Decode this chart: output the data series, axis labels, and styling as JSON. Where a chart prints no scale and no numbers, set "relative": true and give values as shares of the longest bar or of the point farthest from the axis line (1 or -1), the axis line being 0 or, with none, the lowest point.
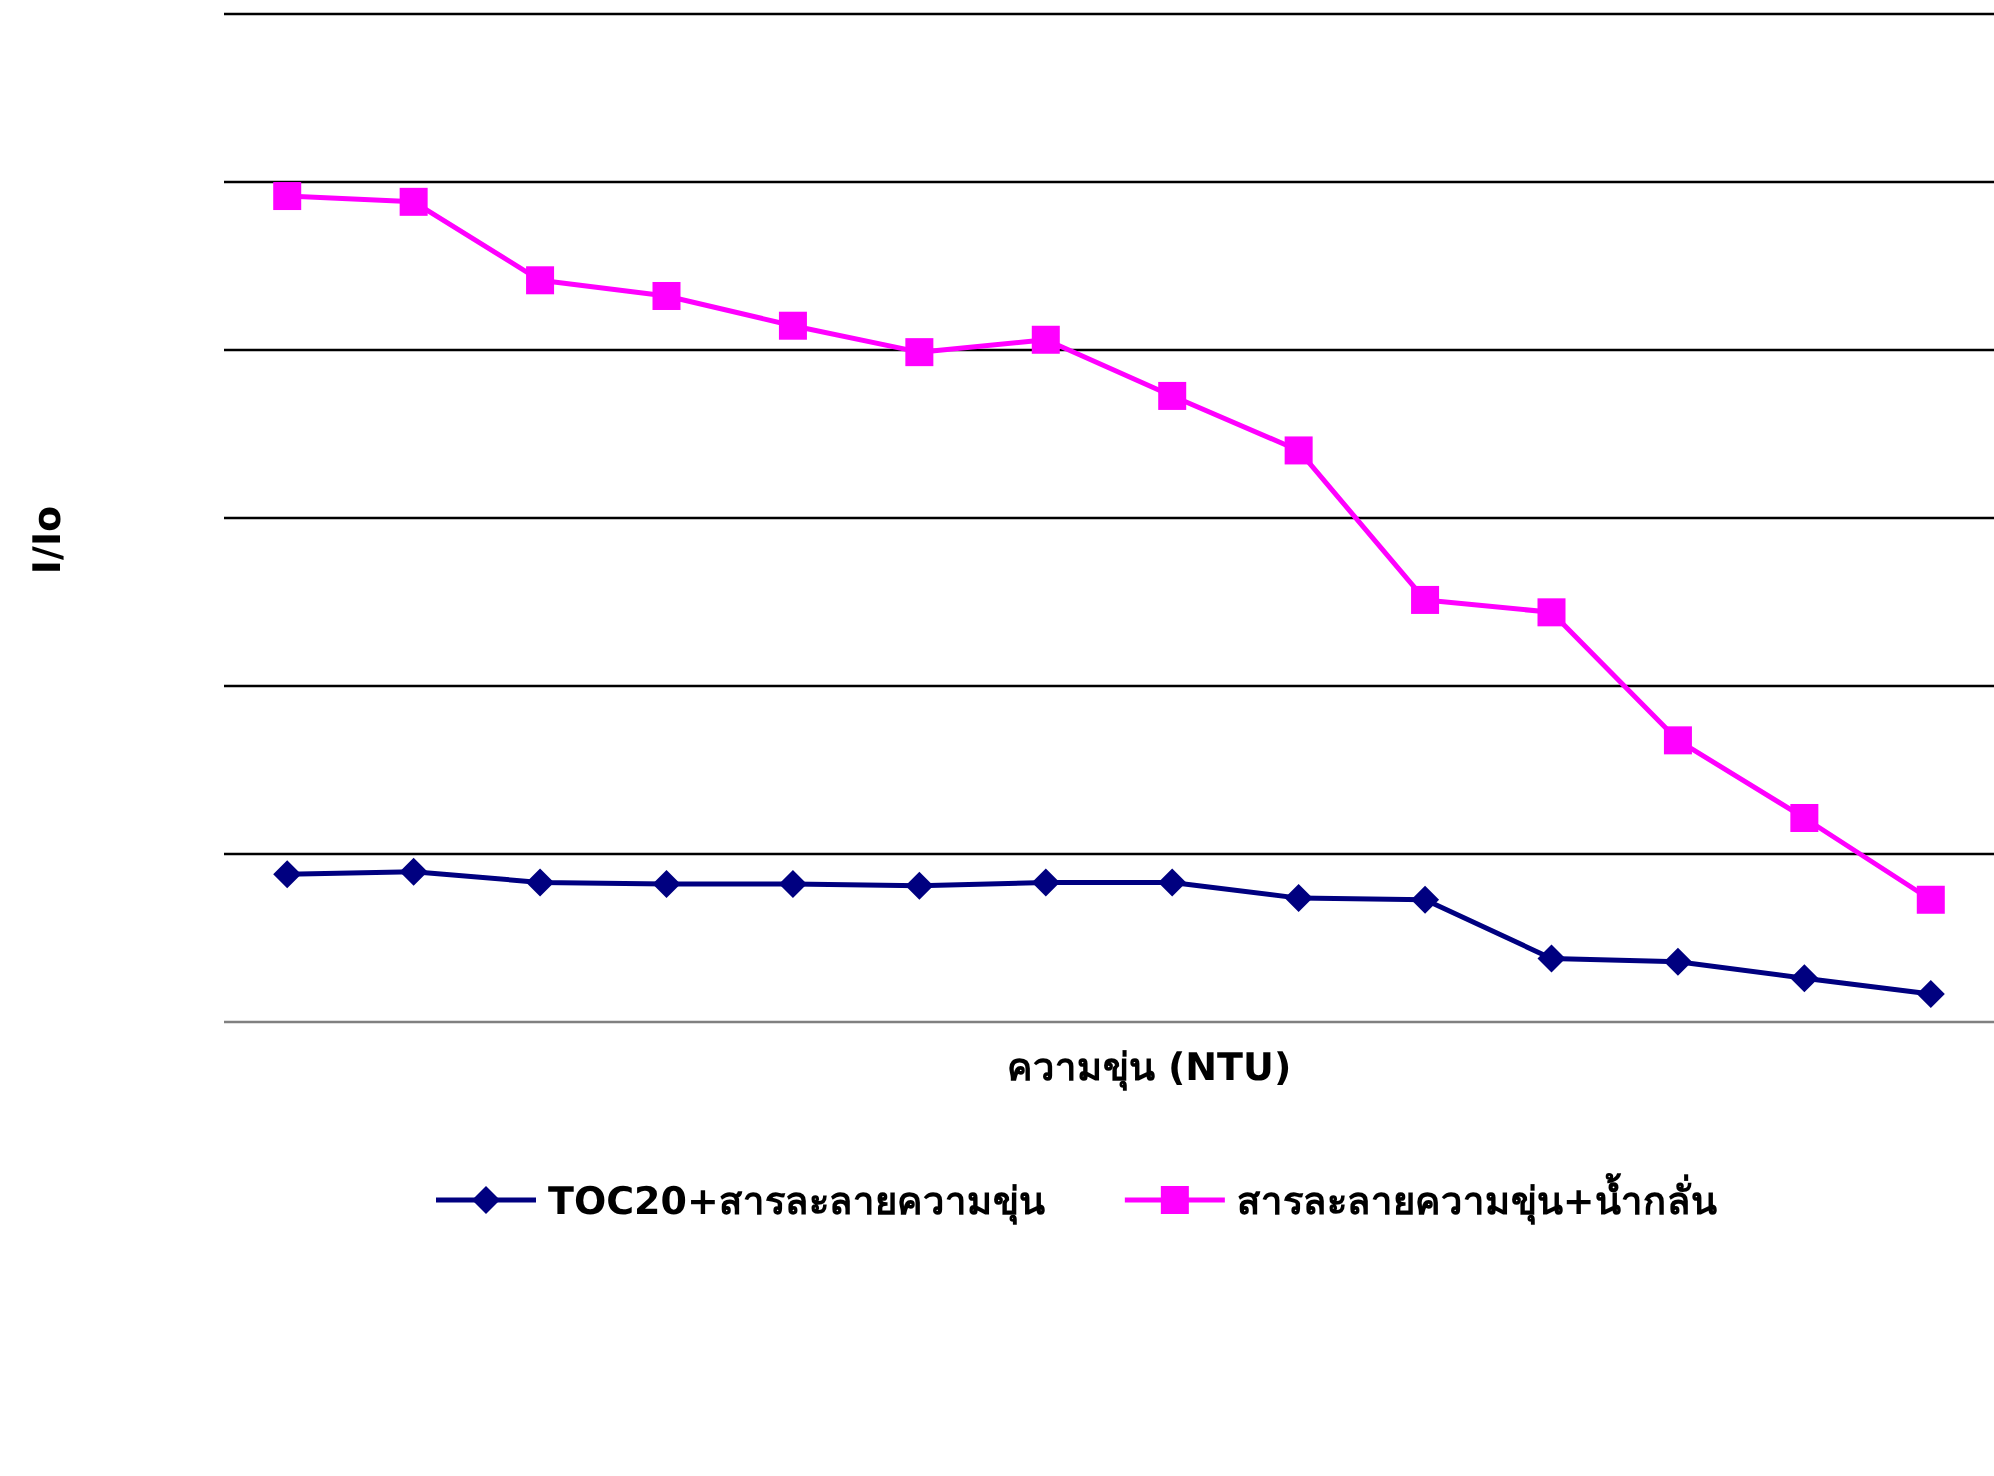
{
  "chart_data": {
    "type": "line",
    "relative": true,
    "xlabel": "ความขุ่น (NTU)",
    "ylabel": "I/Io",
    "categories": [
      null,
      null,
      null,
      null,
      null,
      null,
      null,
      null,
      null,
      null,
      null,
      null,
      null,
      null
    ],
    "grid": "y",
    "legend": "bottom",
    "series": [
      {
        "name": "TOC20+สารละลายความขุ่น",
        "color": "#000080",
        "marker": "diamond",
        "values": [
          0.179,
          0.182,
          0.169,
          0.167,
          0.167,
          0.165,
          0.169,
          0.169,
          0.15,
          0.148,
          0.077,
          0.073,
          0.053,
          0.034
        ]
      },
      {
        "name": "สารละลายความขุ่น+น้ำกลั่น",
        "color": "#ff00ff",
        "marker": "square",
        "values": [
          1,
          0.993,
          0.898,
          0.879,
          0.843,
          0.811,
          0.826,
          0.758,
          0.692,
          0.511,
          0.496,
          0.341,
          0.247,
          0.148
        ]
      }
    ]
  }
}
